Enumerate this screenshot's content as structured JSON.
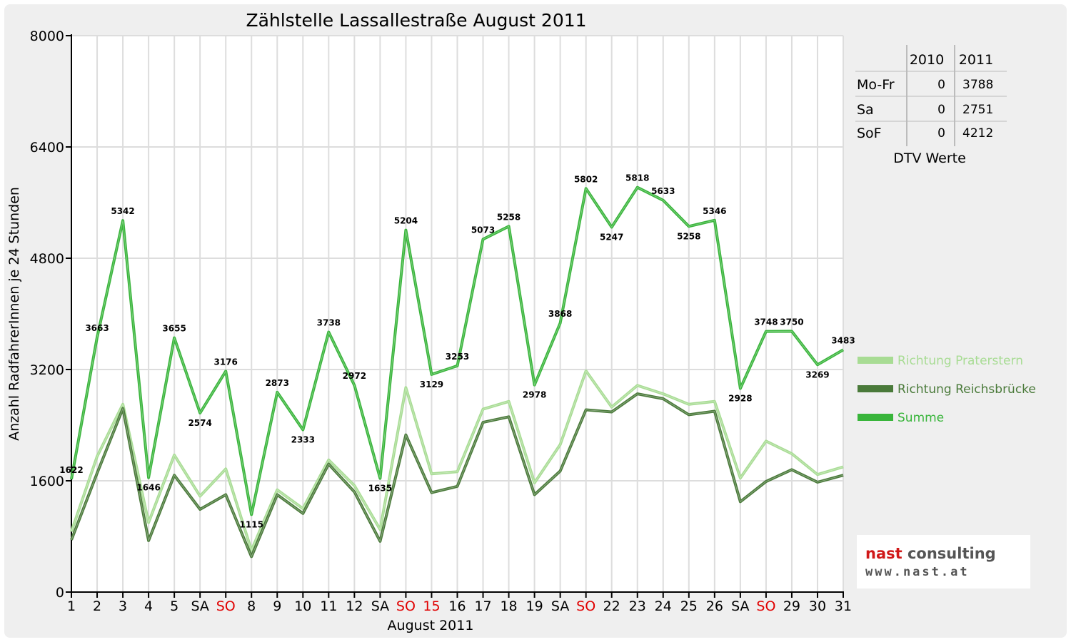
{
  "chart_data": {
    "type": "line",
    "title": "Zählstelle Lassallestraße August 2011",
    "xlabel": "August 2011",
    "ylabel": "Anzahl RadfahrerInnen je 24 Stunden",
    "ylim": [
      0,
      8000
    ],
    "yticks": [
      "0",
      "1600",
      "3200",
      "4800",
      "6400",
      "8000"
    ],
    "ytick_values": [
      0,
      1600,
      3200,
      4800,
      6400,
      8000
    ],
    "grid": true,
    "legend_position": "right",
    "categories": [
      "1",
      "2",
      "3",
      "4",
      "5",
      "SA",
      "SO",
      "8",
      "9",
      "10",
      "11",
      "12",
      "SA",
      "SO",
      "15",
      "16",
      "17",
      "18",
      "19",
      "SA",
      "SO",
      "22",
      "23",
      "24",
      "25",
      "26",
      "SA",
      "SO",
      "29",
      "30",
      "31"
    ],
    "red_categories": [
      6,
      13,
      14,
      20,
      27
    ],
    "series": [
      {
        "name": "Richtung Praterstern",
        "color": "#a8dc94",
        "values": [
          870,
          1950,
          2700,
          1000,
          1970,
          1380,
          1770,
          600,
          1470,
          1200,
          1900,
          1530,
          900,
          2940,
          1700,
          1730,
          2630,
          2740,
          1570,
          2120,
          3180,
          2660,
          2970,
          2850,
          2700,
          2740,
          1640,
          2170,
          1990,
          1690,
          1800
        ]
      },
      {
        "name": "Richtung Reichsbrücke",
        "color": "#4a7a3a",
        "values": [
          750,
          1710,
          2640,
          740,
          1680,
          1190,
          1400,
          510,
          1400,
          1130,
          1840,
          1440,
          730,
          2260,
          1430,
          1520,
          2440,
          2520,
          1400,
          1740,
          2620,
          2590,
          2850,
          2780,
          2550,
          2600,
          1300,
          1590,
          1760,
          1580,
          1680
        ]
      },
      {
        "name": "Summe",
        "color": "#39b53b",
        "values": [
          1622,
          3663,
          5342,
          1646,
          3655,
          2574,
          3176,
          1115,
          2873,
          2333,
          3738,
          2972,
          1635,
          5204,
          3129,
          3253,
          5073,
          5258,
          2978,
          3868,
          5802,
          5247,
          5818,
          5633,
          5258,
          5346,
          2928,
          3748,
          3750,
          3269,
          3483
        ],
        "data_labels": [
          "1622",
          "3663",
          "5342",
          "1646",
          "3655",
          "2574",
          "3176",
          "1115",
          "2873",
          "2333",
          "3738",
          "2972",
          "1635",
          "5204",
          "3129",
          "3253",
          "5073",
          "5258",
          "2978",
          "3868",
          "5802",
          "5247",
          "5818",
          "5633",
          "5258",
          "5346",
          "2928",
          "3748",
          "3750",
          "3269",
          "3483"
        ]
      }
    ],
    "dtv_table": {
      "caption": "DTV Werte",
      "columns": [
        "",
        "2010",
        "2011"
      ],
      "rows": [
        {
          "label": "Mo-Fr",
          "v2010": "0",
          "v2011": "3788"
        },
        {
          "label": "Sa",
          "v2010": "0",
          "v2011": "2751"
        },
        {
          "label": "SoF",
          "v2010": "0",
          "v2011": "4212"
        }
      ]
    }
  },
  "logo": {
    "word1": "nast",
    "word2": "consulting",
    "url": "www.nast.at"
  }
}
